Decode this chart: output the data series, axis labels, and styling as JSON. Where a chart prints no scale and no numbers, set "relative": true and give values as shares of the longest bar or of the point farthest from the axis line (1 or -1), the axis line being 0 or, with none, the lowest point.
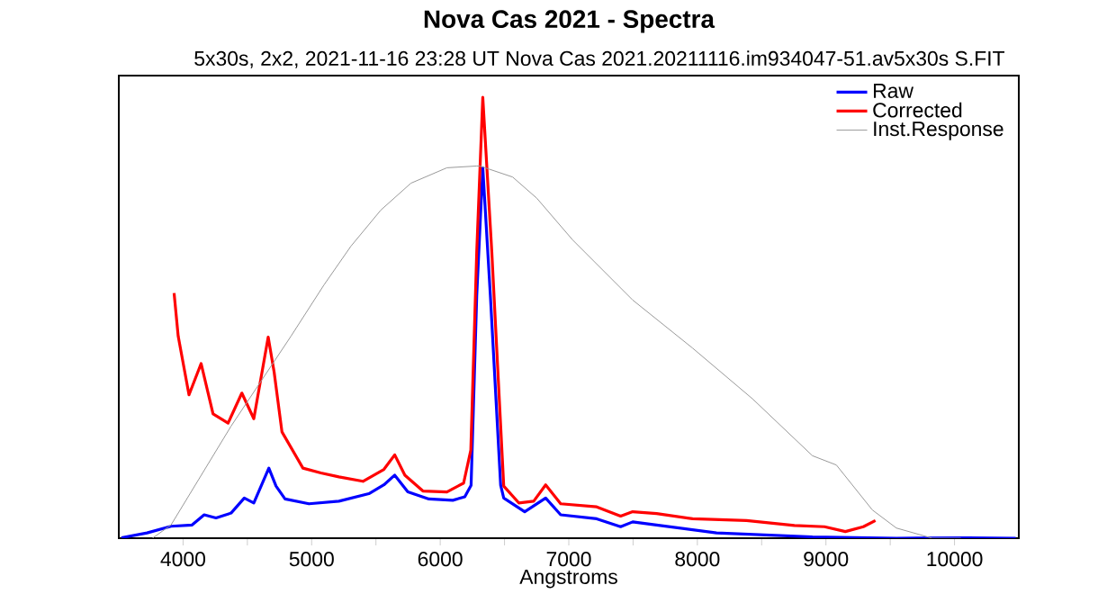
{
  "chart_data": {
    "type": "line",
    "title": "Nova Cas 2021 - Spectra",
    "subtitle": "5x30s, 2x2, 2021-11-16 23:28 UT   Nova Cas 2021.20211116.im934047-51.av5x30s S.FIT",
    "xlabel": "Angstroms",
    "relative": true,
    "legend": "top right",
    "xlim": [
      3500,
      10500
    ],
    "xticks": [
      4000,
      {
        "value": 4500,
        "label": null
      },
      5000,
      {
        "value": 5500,
        "label": null
      },
      6000,
      {
        "value": 6500,
        "label": null
      },
      7000,
      {
        "value": 7500,
        "label": null
      },
      8000,
      {
        "value": 8500,
        "label": null
      },
      9000,
      {
        "value": 9500,
        "label": null
      },
      10000
    ],
    "series": [
      {
        "name": "Raw",
        "color": "#0000ff",
        "x": [
          3520,
          3720,
          3906,
          4070,
          4164,
          4256,
          4373,
          4476,
          4550,
          4667,
          4723,
          4793,
          4979,
          5212,
          5445,
          5562,
          5646,
          5748,
          5912,
          6098,
          6191,
          6240,
          6284,
          6331,
          6390,
          6470,
          6494,
          6657,
          6820,
          6937,
          7217,
          7403,
          7497,
          7683,
          8149,
          8895,
          9548,
          10107,
          10476
        ],
        "values": [
          0.001,
          0.012,
          0.027,
          0.03,
          0.053,
          0.046,
          0.057,
          0.091,
          0.08,
          0.159,
          0.118,
          0.089,
          0.078,
          0.084,
          0.101,
          0.121,
          0.143,
          0.105,
          0.089,
          0.086,
          0.094,
          0.12,
          0.55,
          0.84,
          0.55,
          0.12,
          0.091,
          0.06,
          0.091,
          0.053,
          0.044,
          0.026,
          0.037,
          0.03,
          0.012,
          0.003,
          0.0,
          0.001,
          0.0
        ]
      },
      {
        "name": "Corrected",
        "color": "#ff0000",
        "x": [
          3930,
          3962,
          4046,
          4140,
          4233,
          4350,
          4457,
          4550,
          4662,
          4708,
          4769,
          4932,
          5072,
          5212,
          5399,
          5562,
          5646,
          5725,
          5865,
          6052,
          6182,
          6238,
          6284,
          6331,
          6401,
          6494,
          6611,
          6727,
          6820,
          6937,
          7217,
          7403,
          7497,
          7683,
          7963,
          8382,
          8755,
          8989,
          9151,
          9291,
          9385
        ],
        "values": [
          0.556,
          0.458,
          0.325,
          0.396,
          0.282,
          0.261,
          0.329,
          0.271,
          0.456,
          0.377,
          0.241,
          0.159,
          0.148,
          0.139,
          0.129,
          0.156,
          0.189,
          0.143,
          0.107,
          0.105,
          0.125,
          0.2,
          0.65,
          1.0,
          0.65,
          0.118,
          0.08,
          0.084,
          0.121,
          0.078,
          0.071,
          0.05,
          0.06,
          0.056,
          0.044,
          0.04,
          0.029,
          0.026,
          0.015,
          0.026,
          0.04
        ]
      },
      {
        "name": "Inst.Response",
        "color": "#999999",
        "x": [
          3762,
          3906,
          4373,
          4839,
          5095,
          5305,
          5538,
          5772,
          6052,
          6284,
          6308,
          6563,
          6751,
          7031,
          7497,
          7963,
          8429,
          8895,
          9081,
          9361,
          9548,
          9827,
          10050
        ],
        "values": [
          0.0,
          0.03,
          0.254,
          0.458,
          0.574,
          0.662,
          0.744,
          0.805,
          0.84,
          0.844,
          0.844,
          0.819,
          0.771,
          0.676,
          0.54,
          0.431,
          0.316,
          0.187,
          0.166,
          0.064,
          0.023,
          0.0,
          0.0
        ]
      }
    ]
  }
}
